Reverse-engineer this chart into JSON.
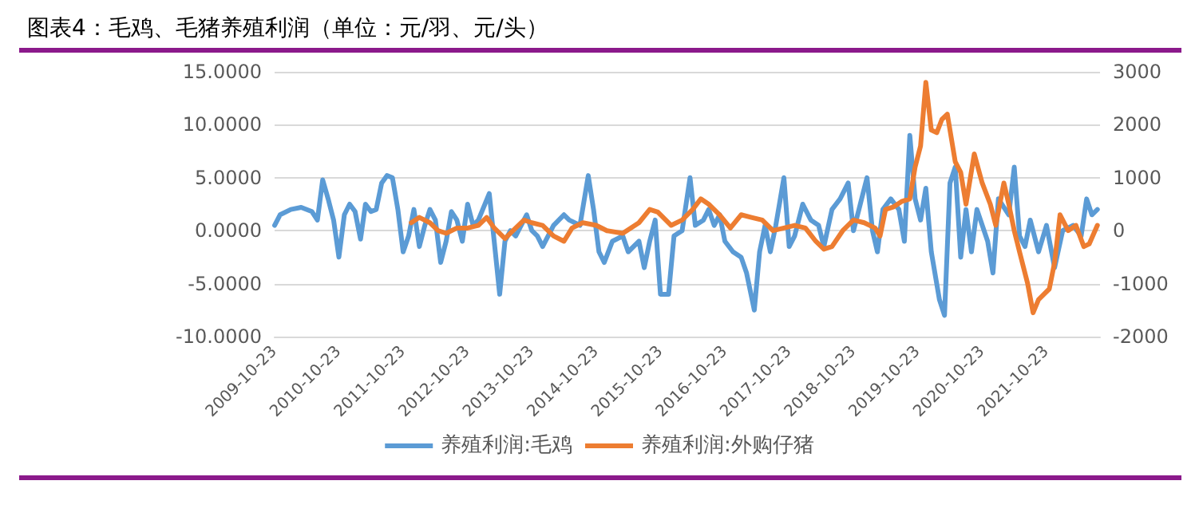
{
  "chart_data": {
    "type": "line",
    "title": "图表4：毛鸡、毛猪养殖利润（单位：元/羽、元/头）",
    "xlim": [
      "2009-10-23",
      "2022-08-23"
    ],
    "xticks": [
      "2009-10-23",
      "2010-10-23",
      "2011-10-23",
      "2012-10-23",
      "2013-10-23",
      "2014-10-23",
      "2015-10-23",
      "2016-10-23",
      "2017-10-23",
      "2018-10-23",
      "2019-10-23",
      "2020-10-23",
      "2021-10-23"
    ],
    "ylim": [
      -10,
      15
    ],
    "yticks": [
      {
        "value": -10,
        "label": "-10.0000"
      },
      {
        "value": -5,
        "label": "-5.0000"
      },
      {
        "value": 0,
        "label": "0.0000"
      },
      {
        "value": 5,
        "label": "5.0000"
      },
      {
        "value": 10,
        "label": "10.0000"
      },
      {
        "value": 15,
        "label": "15.0000"
      }
    ],
    "y2lim": [
      -2000,
      3000
    ],
    "y2ticks": [
      -2000,
      -1000,
      0,
      1000,
      2000,
      3000
    ],
    "grid": "y",
    "legend": "bottom",
    "marker": "none",
    "line_style": "solid",
    "series": [
      {
        "name": "养殖利润:毛鸡",
        "color": "#5b9bd5",
        "x": [
          "2009-10-23",
          "2009-11-23",
          "2010-01-23",
          "2010-03-23",
          "2010-05-23",
          "2010-06-23",
          "2010-07-23",
          "2010-08-23",
          "2010-09-23",
          "2010-10-23",
          "2010-11-23",
          "2010-12-23",
          "2011-01-23",
          "2011-02-23",
          "2011-03-23",
          "2011-04-23",
          "2011-05-23",
          "2011-06-23",
          "2011-07-23",
          "2011-08-23",
          "2011-09-23",
          "2011-10-23",
          "2011-11-23",
          "2011-12-23",
          "2012-01-23",
          "2012-02-23",
          "2012-03-23",
          "2012-04-23",
          "2012-05-23",
          "2012-06-23",
          "2012-07-23",
          "2012-08-23",
          "2012-09-23",
          "2012-10-23",
          "2012-11-23",
          "2012-12-23",
          "2013-02-23",
          "2013-03-23",
          "2013-04-23",
          "2013-05-23",
          "2013-06-23",
          "2013-07-23",
          "2013-09-23",
          "2013-10-23",
          "2013-11-23",
          "2013-12-23",
          "2014-02-23",
          "2014-04-23",
          "2014-05-23",
          "2014-07-23",
          "2014-09-08",
          "2014-10-08",
          "2014-11-08",
          "2014-12-08",
          "2015-01-23",
          "2015-03-23",
          "2015-04-23",
          "2015-06-23",
          "2015-07-23",
          "2015-08-23",
          "2015-09-23",
          "2015-10-23",
          "2015-12-08",
          "2016-01-08",
          "2016-02-23",
          "2016-04-08",
          "2016-05-08",
          "2016-06-23",
          "2016-07-23",
          "2016-08-23",
          "2016-09-23",
          "2016-10-23",
          "2016-12-08",
          "2017-01-23",
          "2017-02-23",
          "2017-04-08",
          "2017-05-08",
          "2017-06-08",
          "2017-07-08",
          "2017-08-08",
          "2017-09-23",
          "2017-10-23",
          "2017-11-23",
          "2018-01-08",
          "2018-02-23",
          "2018-04-08",
          "2018-05-08",
          "2018-06-23",
          "2018-08-08",
          "2018-09-23",
          "2018-10-23",
          "2018-11-23",
          "2019-01-08",
          "2019-02-08",
          "2019-03-08",
          "2019-04-08",
          "2019-05-23",
          "2019-07-08",
          "2019-08-08",
          "2019-09-08",
          "2019-10-08",
          "2019-11-08",
          "2019-12-08",
          "2020-01-08",
          "2020-02-23",
          "2020-03-23",
          "2020-04-23",
          "2020-05-23",
          "2020-06-23",
          "2020-07-23",
          "2020-08-23",
          "2020-09-23",
          "2020-11-23",
          "2020-12-23",
          "2021-01-23",
          "2021-03-23",
          "2021-04-23",
          "2021-05-23",
          "2021-06-23",
          "2021-07-23",
          "2021-09-08",
          "2021-10-23",
          "2021-12-08",
          "2022-01-23",
          "2022-03-23",
          "2022-05-08",
          "2022-06-08",
          "2022-07-08",
          "2022-08-08"
        ],
        "values": [
          0.5,
          1.5,
          2,
          2.2,
          1.8,
          1,
          4.8,
          3,
          1,
          -2.5,
          1.5,
          2.5,
          1.8,
          -0.8,
          2.5,
          1.8,
          2,
          4.5,
          5.2,
          5,
          2,
          -2,
          -0.5,
          2,
          -1.5,
          0.5,
          2,
          1,
          -3,
          -1,
          1.8,
          1,
          -1,
          2.5,
          0.5,
          1,
          3.5,
          -1,
          -6,
          -1,
          0,
          -0.5,
          1.5,
          0,
          -0.5,
          -1.5,
          0.5,
          1.5,
          1,
          0.5,
          5.2,
          2,
          -2,
          -3,
          -1,
          -0.5,
          -2,
          -1,
          -3.5,
          -1,
          1,
          -6,
          -6,
          -0.5,
          0,
          5,
          0.5,
          1,
          2,
          0.5,
          1.5,
          -1,
          -2,
          -2.5,
          -4,
          -7.5,
          -2,
          0.5,
          -2,
          0.5,
          5,
          -1.5,
          -0.5,
          2.5,
          1,
          0.5,
          -1.5,
          2,
          3,
          4.5,
          0,
          2,
          5,
          0,
          -2,
          2,
          3,
          2,
          -1,
          9,
          3,
          1,
          4,
          -2,
          -6.5,
          -8,
          4.5,
          6,
          -2.5,
          2,
          -2,
          2,
          -1,
          -4,
          3,
          1.5,
          6,
          -0.5,
          -1.5,
          1,
          -2,
          0.5,
          -3.5,
          0,
          0.5,
          -0.5,
          3,
          1.5,
          2
        ]
      },
      {
        "name": "养殖利润:外购仔猪",
        "color": "#ed7d31",
        "axis": "y2",
        "x": [
          "2011-12-08",
          "2012-01-23",
          "2012-03-23",
          "2012-05-08",
          "2012-06-23",
          "2012-08-23",
          "2012-10-23",
          "2012-12-23",
          "2013-02-08",
          "2013-03-23",
          "2013-05-23",
          "2013-07-23",
          "2013-09-08",
          "2013-10-23",
          "2013-12-23",
          "2014-02-23",
          "2014-04-23",
          "2014-06-08",
          "2014-08-08",
          "2014-10-23",
          "2014-12-23",
          "2015-03-23",
          "2015-06-23",
          "2015-08-23",
          "2015-10-08",
          "2015-12-23",
          "2016-02-23",
          "2016-04-23",
          "2016-06-08",
          "2016-07-23",
          "2016-09-23",
          "2016-11-23",
          "2017-01-23",
          "2017-03-23",
          "2017-05-23",
          "2017-07-23",
          "2017-09-23",
          "2017-11-23",
          "2018-01-23",
          "2018-03-23",
          "2018-05-08",
          "2018-06-23",
          "2018-08-23",
          "2018-10-23",
          "2018-12-23",
          "2019-02-23",
          "2019-03-23",
          "2019-04-23",
          "2019-06-08",
          "2019-07-23",
          "2019-09-08",
          "2019-10-08",
          "2019-11-08",
          "2019-12-08",
          "2020-01-08",
          "2020-02-08",
          "2020-03-08",
          "2020-04-08",
          "2020-05-23",
          "2020-06-23",
          "2020-07-23",
          "2020-09-08",
          "2020-10-23",
          "2020-12-08",
          "2021-01-08",
          "2021-02-23",
          "2021-03-23",
          "2021-04-23",
          "2021-05-23",
          "2021-07-08",
          "2021-08-08",
          "2021-09-08",
          "2021-11-08",
          "2021-12-08",
          "2022-01-08",
          "2022-02-23",
          "2022-04-08",
          "2022-05-23",
          "2022-06-23",
          "2022-08-08"
        ],
        "values": [
          150,
          250,
          150,
          0,
          -50,
          50,
          50,
          100,
          250,
          50,
          -150,
          50,
          200,
          150,
          100,
          -100,
          -200,
          50,
          150,
          100,
          0,
          -50,
          150,
          400,
          350,
          100,
          200,
          400,
          600,
          500,
          300,
          50,
          300,
          250,
          200,
          0,
          50,
          100,
          50,
          -200,
          -350,
          -300,
          0,
          200,
          150,
          50,
          -100,
          400,
          450,
          550,
          600,
          1200,
          1600,
          2800,
          1900,
          1850,
          2100,
          2200,
          1300,
          1100,
          500,
          1450,
          900,
          500,
          100,
          900,
          500,
          0,
          -400,
          -1000,
          -1550,
          -1300,
          -1100,
          -600,
          300,
          0,
          100,
          -300,
          -250,
          100
        ]
      }
    ]
  }
}
